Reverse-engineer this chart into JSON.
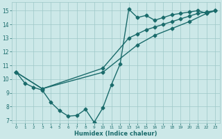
{
  "xlabel": "Humidex (Indice chaleur)",
  "bg_color": "#cce8e8",
  "grid_color": "#9dc8c8",
  "line_color": "#1a6b6b",
  "xlim": [
    -0.5,
    23.5
  ],
  "ylim": [
    6.8,
    15.6
  ],
  "xticks": [
    0,
    1,
    2,
    3,
    4,
    5,
    6,
    7,
    8,
    9,
    10,
    11,
    12,
    13,
    14,
    15,
    16,
    17,
    18,
    19,
    20,
    21,
    22,
    23
  ],
  "yticks": [
    7,
    8,
    9,
    10,
    11,
    12,
    13,
    14,
    15
  ],
  "line1_x": [
    0,
    3,
    10,
    14,
    16,
    18,
    20,
    22,
    23
  ],
  "line1_y": [
    10.5,
    9.3,
    10.5,
    12.5,
    13.2,
    13.7,
    14.2,
    14.8,
    15.0
  ],
  "line2_x": [
    0,
    3,
    10,
    13,
    14,
    15,
    16,
    17,
    18,
    19,
    20,
    21,
    22,
    23
  ],
  "line2_y": [
    10.5,
    9.3,
    10.8,
    13.0,
    13.3,
    13.6,
    13.8,
    14.0,
    14.2,
    14.4,
    14.6,
    14.8,
    14.9,
    15.0
  ],
  "line3_x": [
    0,
    1,
    2,
    3,
    4,
    5,
    6,
    7,
    8,
    9,
    10,
    11,
    12,
    13,
    14,
    15,
    16,
    17,
    18,
    19,
    20,
    21,
    22,
    23
  ],
  "line3_y": [
    10.5,
    9.7,
    9.4,
    9.2,
    8.3,
    7.7,
    7.3,
    7.35,
    7.8,
    6.85,
    7.9,
    9.6,
    11.1,
    15.1,
    14.5,
    14.65,
    14.3,
    14.5,
    14.7,
    14.8,
    14.9,
    15.0,
    14.8,
    15.0
  ],
  "marker_size": 2.5,
  "line_width": 1.0
}
